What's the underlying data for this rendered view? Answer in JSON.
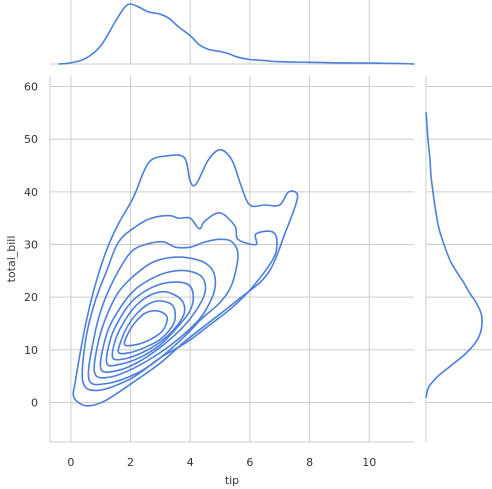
{
  "chart_data": {
    "type": "kde_jointplot",
    "xlabel": "tip",
    "ylabel": "total_bill",
    "xlim": [
      -0.7,
      11.5
    ],
    "ylim": [
      -7.5,
      62
    ],
    "x_ticks": [
      0,
      2,
      4,
      6,
      8,
      10
    ],
    "y_ticks": [
      0,
      10,
      20,
      30,
      40,
      50,
      60
    ],
    "grid": true,
    "line_color": "#4c7fd9",
    "contour_levels": [
      {
        "level": 1,
        "points": [
          [
            0.15,
            4
          ],
          [
            0.1,
            1
          ],
          [
            0.5,
            -0.6
          ],
          [
            1.1,
            0.2
          ],
          [
            2.0,
            3.5
          ],
          [
            3.0,
            7.5
          ],
          [
            3.8,
            11.5
          ],
          [
            4.7,
            15.5
          ],
          [
            5.6,
            19.5
          ],
          [
            6.6,
            24.5
          ],
          [
            7.2,
            32.5
          ],
          [
            7.6,
            39
          ],
          [
            7.3,
            40
          ],
          [
            7.0,
            37.5
          ],
          [
            6.5,
            37.5
          ],
          [
            6.0,
            37.5
          ],
          [
            5.7,
            41.2
          ],
          [
            5.4,
            46
          ],
          [
            5.0,
            48
          ],
          [
            4.6,
            46
          ],
          [
            4.2,
            41.5
          ],
          [
            4.0,
            42
          ],
          [
            3.8,
            46.5
          ],
          [
            3.2,
            46.8
          ],
          [
            2.6,
            45.5
          ],
          [
            2.1,
            39
          ],
          [
            1.6,
            34
          ],
          [
            1.2,
            29
          ],
          [
            0.8,
            22
          ],
          [
            0.5,
            15
          ],
          [
            0.3,
            9
          ],
          [
            0.15,
            4
          ]
        ]
      },
      {
        "level": 2,
        "points": [
          [
            0.4,
            4
          ],
          [
            0.9,
            2.3
          ],
          [
            2.0,
            4.5
          ],
          [
            3.0,
            8.5
          ],
          [
            3.9,
            11.5
          ],
          [
            4.6,
            14.5
          ],
          [
            5.4,
            18
          ],
          [
            6.1,
            22
          ],
          [
            6.8,
            27.5
          ],
          [
            6.9,
            31
          ],
          [
            6.7,
            32.5
          ],
          [
            6.2,
            32
          ],
          [
            6.2,
            30
          ],
          [
            5.6,
            31
          ],
          [
            5.5,
            33.5
          ],
          [
            5.0,
            36
          ],
          [
            4.5,
            34.5
          ],
          [
            4.3,
            33
          ],
          [
            4.0,
            35
          ],
          [
            3.6,
            35
          ],
          [
            3.3,
            35.5
          ],
          [
            2.7,
            35
          ],
          [
            2.2,
            33.5
          ],
          [
            1.6,
            30.5
          ],
          [
            1.2,
            25
          ],
          [
            0.8,
            19
          ],
          [
            0.5,
            12
          ],
          [
            0.4,
            4
          ]
        ]
      },
      {
        "level": 3,
        "points": [
          [
            0.6,
            4.5
          ],
          [
            1.2,
            3.6
          ],
          [
            2.2,
            5.5
          ],
          [
            3.0,
            8.5
          ],
          [
            3.8,
            12.5
          ],
          [
            4.4,
            16
          ],
          [
            5.0,
            19
          ],
          [
            5.4,
            22.5
          ],
          [
            5.6,
            28
          ],
          [
            5.4,
            30.5
          ],
          [
            5.0,
            31
          ],
          [
            4.5,
            30.5
          ],
          [
            4.0,
            29.5
          ],
          [
            3.5,
            29.5
          ],
          [
            3.1,
            30.5
          ],
          [
            2.5,
            30
          ],
          [
            2.0,
            28.5
          ],
          [
            1.5,
            24
          ],
          [
            1.1,
            19
          ],
          [
            0.8,
            13
          ],
          [
            0.6,
            4.5
          ]
        ]
      },
      {
        "level": 4,
        "points": [
          [
            0.8,
            5.5
          ],
          [
            1.3,
            4.8
          ],
          [
            2.1,
            6.5
          ],
          [
            3.0,
            9.5
          ],
          [
            3.8,
            13
          ],
          [
            4.4,
            16.5
          ],
          [
            4.8,
            21
          ],
          [
            4.8,
            24.5
          ],
          [
            4.5,
            26.5
          ],
          [
            3.9,
            27.5
          ],
          [
            3.3,
            27.5
          ],
          [
            2.7,
            26.5
          ],
          [
            2.1,
            24
          ],
          [
            1.6,
            21
          ],
          [
            1.2,
            16.5
          ],
          [
            0.9,
            11
          ],
          [
            0.8,
            5.5
          ]
        ]
      },
      {
        "level": 5,
        "points": [
          [
            1.0,
            6.5
          ],
          [
            1.5,
            6
          ],
          [
            2.2,
            7.5
          ],
          [
            3.0,
            10.5
          ],
          [
            3.7,
            14
          ],
          [
            4.2,
            17.5
          ],
          [
            4.5,
            21
          ],
          [
            4.4,
            23.8
          ],
          [
            3.9,
            25
          ],
          [
            3.3,
            24.8
          ],
          [
            2.7,
            23.5
          ],
          [
            2.1,
            21.2
          ],
          [
            1.6,
            17.5
          ],
          [
            1.2,
            13
          ],
          [
            1.0,
            6.5
          ]
        ]
      },
      {
        "level": 6,
        "points": [
          [
            1.2,
            7.5
          ],
          [
            1.6,
            7.2
          ],
          [
            2.3,
            8.5
          ],
          [
            3.0,
            11
          ],
          [
            3.6,
            14.5
          ],
          [
            4.0,
            17.5
          ],
          [
            4.1,
            20.5
          ],
          [
            3.9,
            22.5
          ],
          [
            3.3,
            22.8
          ],
          [
            2.7,
            21.8
          ],
          [
            2.1,
            19.5
          ],
          [
            1.7,
            16.5
          ],
          [
            1.35,
            12.5
          ],
          [
            1.2,
            7.5
          ]
        ]
      },
      {
        "level": 7,
        "points": [
          [
            1.4,
            8.5
          ],
          [
            1.8,
            8.3
          ],
          [
            2.4,
            9.5
          ],
          [
            3.0,
            11.5
          ],
          [
            3.5,
            14.2
          ],
          [
            3.8,
            17
          ],
          [
            3.7,
            19.5
          ],
          [
            3.2,
            21
          ],
          [
            2.7,
            20.5
          ],
          [
            2.2,
            18.5
          ],
          [
            1.8,
            15.5
          ],
          [
            1.5,
            12
          ],
          [
            1.4,
            8.5
          ]
        ]
      },
      {
        "level": 8,
        "points": [
          [
            1.6,
            9.5
          ],
          [
            2.0,
            9.5
          ],
          [
            2.5,
            10.5
          ],
          [
            3.0,
            12
          ],
          [
            3.4,
            14.5
          ],
          [
            3.5,
            16.5
          ],
          [
            3.4,
            18.5
          ],
          [
            3.0,
            19.3
          ],
          [
            2.6,
            18.7
          ],
          [
            2.2,
            16.8
          ],
          [
            1.9,
            14.5
          ],
          [
            1.7,
            12
          ],
          [
            1.6,
            9.5
          ]
        ]
      },
      {
        "level": 9,
        "points": [
          [
            1.8,
            11
          ],
          [
            2.2,
            11
          ],
          [
            2.6,
            11.8
          ],
          [
            3.0,
            13.2
          ],
          [
            3.2,
            15
          ],
          [
            3.2,
            16.5
          ],
          [
            2.9,
            17.4
          ],
          [
            2.5,
            17
          ],
          [
            2.2,
            15.5
          ],
          [
            1.95,
            13.5
          ],
          [
            1.8,
            11
          ]
        ]
      }
    ],
    "top_marginal": {
      "variable": "tip",
      "points": [
        [
          -0.4,
          0
        ],
        [
          0.0,
          0.01
        ],
        [
          0.5,
          0.05
        ],
        [
          1.0,
          0.16
        ],
        [
          1.5,
          0.38
        ],
        [
          1.8,
          0.5
        ],
        [
          2.0,
          0.53
        ],
        [
          2.3,
          0.5
        ],
        [
          2.6,
          0.46
        ],
        [
          3.0,
          0.44
        ],
        [
          3.3,
          0.4
        ],
        [
          3.6,
          0.33
        ],
        [
          4.0,
          0.25
        ],
        [
          4.3,
          0.17
        ],
        [
          4.6,
          0.13
        ],
        [
          5.0,
          0.11
        ],
        [
          5.3,
          0.09
        ],
        [
          5.6,
          0.06
        ],
        [
          6.0,
          0.04
        ],
        [
          6.5,
          0.03
        ],
        [
          7.0,
          0.02
        ],
        [
          8.0,
          0.015
        ],
        [
          9.0,
          0.01
        ],
        [
          10.0,
          0.008
        ],
        [
          11.0,
          0.004
        ],
        [
          11.5,
          0
        ]
      ]
    },
    "right_marginal": {
      "variable": "total_bill",
      "points": [
        [
          1,
          0
        ],
        [
          3,
          0.003
        ],
        [
          5,
          0.012
        ],
        [
          7,
          0.025
        ],
        [
          9,
          0.038
        ],
        [
          11,
          0.048
        ],
        [
          13,
          0.054
        ],
        [
          15,
          0.056
        ],
        [
          17,
          0.055
        ],
        [
          19,
          0.05
        ],
        [
          21,
          0.043
        ],
        [
          23,
          0.037
        ],
        [
          25,
          0.03
        ],
        [
          27,
          0.024
        ],
        [
          30,
          0.018
        ],
        [
          33,
          0.013
        ],
        [
          36,
          0.01
        ],
        [
          40,
          0.007
        ],
        [
          43,
          0.005
        ],
        [
          46,
          0.004
        ],
        [
          50,
          0.002
        ],
        [
          54,
          0.0005
        ],
        [
          55,
          0
        ]
      ]
    }
  }
}
